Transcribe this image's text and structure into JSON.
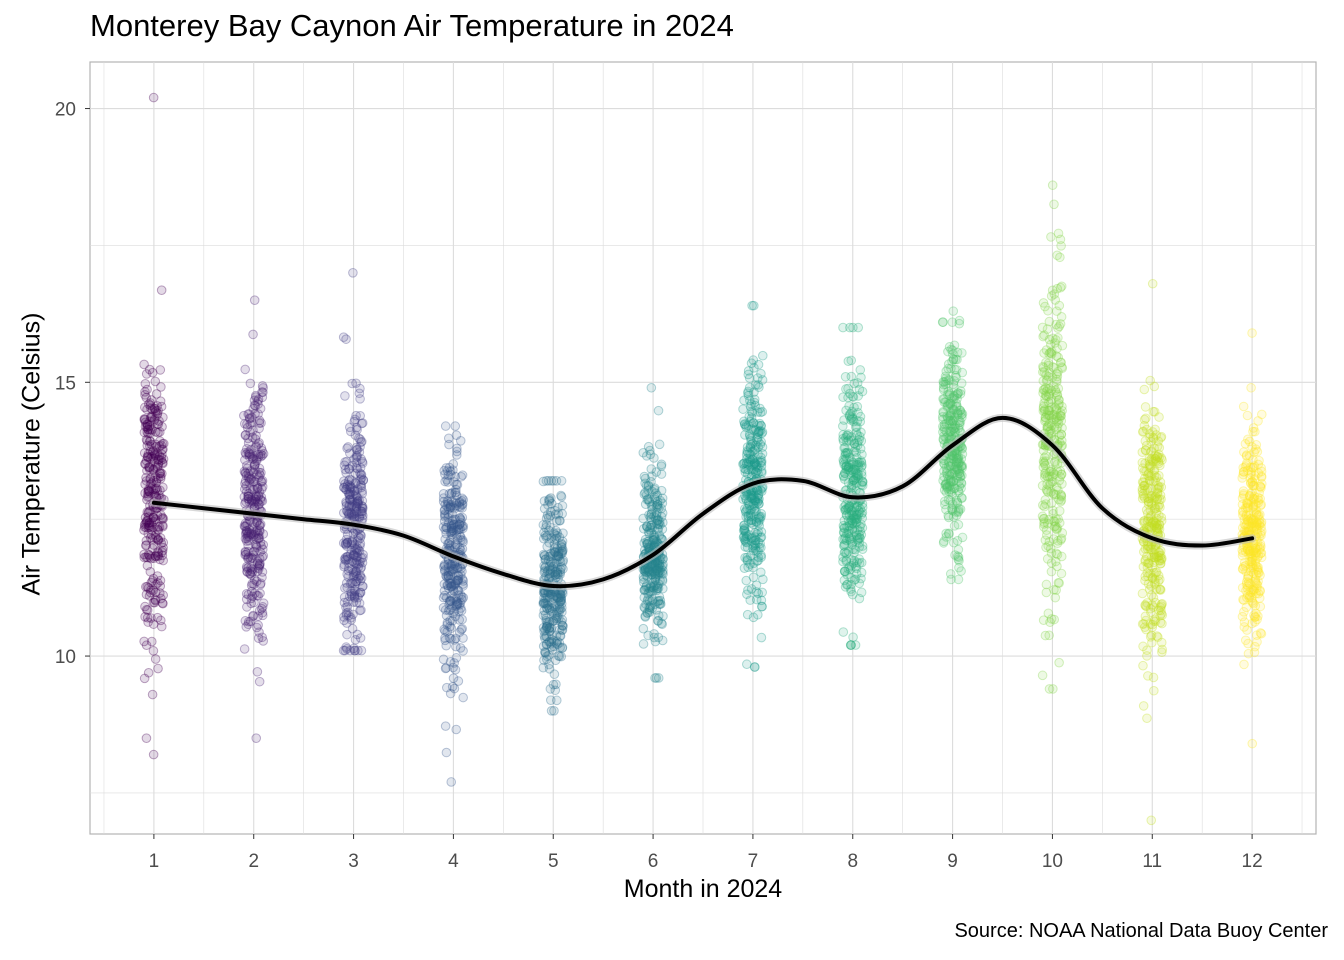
{
  "chart_data": {
    "type": "scatter",
    "title": "Monterey Bay Caynon Air Temperature in 2024",
    "xlabel": "Month in 2024",
    "ylabel": "Air Temperature (Celsius)",
    "caption": "Source: NOAA National Data Buoy Center",
    "xlim": [
      0.36,
      12.64
    ],
    "ylim": [
      6.75,
      20.85
    ],
    "x_ticks": [
      1,
      2,
      3,
      4,
      5,
      6,
      7,
      8,
      9,
      10,
      11,
      12
    ],
    "y_ticks": [
      10,
      15,
      20
    ],
    "grid": true,
    "legend": "none",
    "point_alpha": 0.15,
    "months": [
      {
        "month": 1,
        "color": "#440154",
        "mean": 12.8,
        "sd": 1.3,
        "min": 8.2,
        "max": 20.2,
        "n": 300
      },
      {
        "month": 2,
        "color": "#482173",
        "mean": 12.6,
        "sd": 1.15,
        "min": 8.5,
        "max": 16.5,
        "n": 300
      },
      {
        "month": 3,
        "color": "#433E85",
        "mean": 12.4,
        "sd": 1.1,
        "min": 10.1,
        "max": 17.0,
        "n": 300
      },
      {
        "month": 4,
        "color": "#38598C",
        "mean": 11.8,
        "sd": 1.0,
        "min": 7.7,
        "max": 14.2,
        "n": 300
      },
      {
        "month": 5,
        "color": "#2D708E",
        "mean": 11.3,
        "sd": 0.8,
        "min": 9.0,
        "max": 13.2,
        "n": 300
      },
      {
        "month": 6,
        "color": "#25858E",
        "mean": 11.8,
        "sd": 0.8,
        "min": 9.6,
        "max": 14.9,
        "n": 300
      },
      {
        "month": 7,
        "color": "#1E9B8A",
        "mean": 13.1,
        "sd": 1.1,
        "min": 9.8,
        "max": 16.4,
        "n": 300
      },
      {
        "month": 8,
        "color": "#2BB07F",
        "mean": 12.9,
        "sd": 1.1,
        "min": 10.2,
        "max": 16.0,
        "n": 300
      },
      {
        "month": 9,
        "color": "#51C56A",
        "mean": 13.9,
        "sd": 0.9,
        "min": 11.4,
        "max": 16.3,
        "n": 300
      },
      {
        "month": 10,
        "color": "#85D54A",
        "mean": 14.0,
        "sd": 1.5,
        "min": 9.4,
        "max": 18.6,
        "n": 300
      },
      {
        "month": 11,
        "color": "#C2DF23",
        "mean": 12.2,
        "sd": 1.2,
        "min": 7.0,
        "max": 16.8,
        "n": 300
      },
      {
        "month": 12,
        "color": "#FDE725",
        "mean": 12.15,
        "sd": 1.0,
        "min": 8.4,
        "max": 15.9,
        "n": 300
      }
    ],
    "smooth": {
      "color": "#000000",
      "band_color": "#bebebe",
      "x": [
        1,
        1.5,
        2,
        2.5,
        3,
        3.5,
        4,
        4.5,
        5,
        5.5,
        6,
        6.5,
        7,
        7.5,
        8,
        8.5,
        9,
        9.5,
        10,
        10.5,
        11,
        11.5,
        12
      ],
      "y": [
        12.8,
        12.7,
        12.6,
        12.5,
        12.4,
        12.2,
        11.82,
        11.5,
        11.28,
        11.4,
        11.85,
        12.6,
        13.15,
        13.2,
        12.9,
        13.1,
        13.85,
        14.35,
        13.85,
        12.7,
        12.15,
        12.02,
        12.15
      ]
    }
  }
}
